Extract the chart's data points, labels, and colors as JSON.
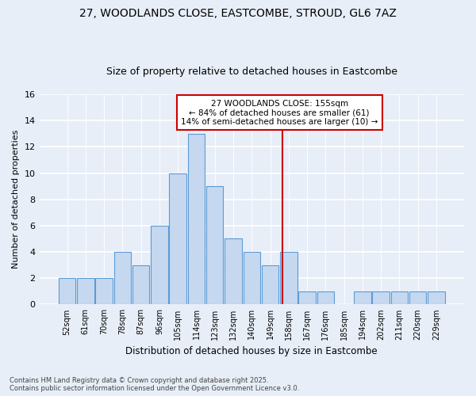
{
  "title_line1": "27, WOODLANDS CLOSE, EASTCOMBE, STROUD, GL6 7AZ",
  "title_line2": "Size of property relative to detached houses in Eastcombe",
  "xlabel": "Distribution of detached houses by size in Eastcombe",
  "ylabel": "Number of detached properties",
  "categories": [
    "52sqm",
    "61sqm",
    "70sqm",
    "78sqm",
    "87sqm",
    "96sqm",
    "105sqm",
    "114sqm",
    "123sqm",
    "132sqm",
    "140sqm",
    "149sqm",
    "158sqm",
    "167sqm",
    "176sqm",
    "185sqm",
    "194sqm",
    "202sqm",
    "211sqm",
    "220sqm",
    "229sqm"
  ],
  "values": [
    2,
    2,
    2,
    4,
    3,
    6,
    10,
    13,
    9,
    5,
    4,
    3,
    4,
    1,
    1,
    0,
    1,
    1,
    1,
    1,
    1
  ],
  "bar_color": "#c5d8f0",
  "bar_edge_color": "#5b9bd5",
  "annotation_text_line1": "27 WOODLANDS CLOSE: 155sqm",
  "annotation_text_line2": "← 84% of detached houses are smaller (61)",
  "annotation_text_line3": "14% of semi-detached houses are larger (10) →",
  "ylim": [
    0,
    16
  ],
  "yticks": [
    0,
    2,
    4,
    6,
    8,
    10,
    12,
    14,
    16
  ],
  "background_color": "#e8eef8",
  "footer_line1": "Contains HM Land Registry data © Crown copyright and database right 2025.",
  "footer_line2": "Contains public sector information licensed under the Open Government Licence v3.0.",
  "annotation_box_facecolor": "#ffffff",
  "annotation_box_edgecolor": "#cc0000",
  "red_line_color": "#cc0000",
  "grid_color": "#ffffff",
  "title_fontsize": 10,
  "subtitle_fontsize": 9,
  "ylabel_fontsize": 8,
  "xlabel_fontsize": 8.5,
  "tick_fontsize": 8,
  "xtick_fontsize": 7,
  "footer_fontsize": 6,
  "annotation_fontsize": 7.5
}
